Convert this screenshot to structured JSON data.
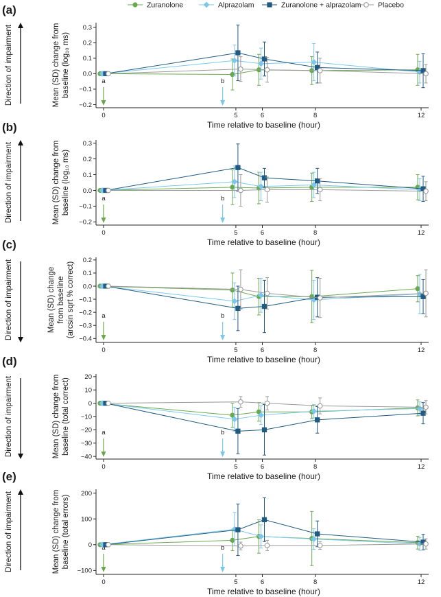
{
  "colors": {
    "zuranolone": "#6aa84f",
    "alprazolam": "#7cc8ec",
    "combo": "#1f5a80",
    "placebo": "#9a9a9a",
    "axis": "#222222"
  },
  "legend": [
    {
      "key": "zuranolone",
      "label": "Zuranolone",
      "marker": "circle"
    },
    {
      "key": "alprazolam",
      "label": "Alprazolam",
      "marker": "diamond"
    },
    {
      "key": "combo",
      "label": "Zuranolone + alprazolam",
      "marker": "square"
    },
    {
      "key": "placebo",
      "label": "Placebo",
      "marker": "open-circle"
    }
  ],
  "direction_label": "Direction of impairment",
  "markers": {
    "a": "a",
    "b": "b",
    "a_x": 0,
    "b_x": 4.5
  },
  "chart_data": [
    {
      "panel": "(a)",
      "type": "line",
      "ylabel_lines": [
        "Mean (SD) change from",
        "baseline (log₁₀ ms)"
      ],
      "xlabel": "Time relative to baseline (hour)",
      "x": [
        0,
        5,
        6,
        8,
        12
      ],
      "xticks": [
        0,
        5,
        6,
        8,
        12
      ],
      "ylim": [
        -0.22,
        0.33
      ],
      "yticks": [
        -0.2,
        -0.1,
        0.0,
        0.1,
        0.2,
        0.3
      ],
      "ytick_labels": [
        "−0.2",
        "−0.1",
        "0.0",
        "0.1",
        "0.2",
        "0.3"
      ],
      "direction": "up",
      "series": [
        {
          "key": "zuranolone",
          "name": "Zuranolone",
          "values": [
            0.0,
            -0.005,
            0.025,
            0.02,
            0.025
          ],
          "sd": [
            0.003,
            0.1,
            0.1,
            0.09,
            0.1
          ]
        },
        {
          "key": "alprazolam",
          "name": "Alprazolam",
          "values": [
            0.0,
            0.085,
            0.065,
            0.075,
            0.01
          ],
          "sd": [
            0.003,
            0.1,
            0.1,
            0.12,
            0.07
          ]
        },
        {
          "key": "combo",
          "name": "Zuranolone + alprazolam",
          "values": [
            0.0,
            0.135,
            0.095,
            0.04,
            0.02
          ],
          "sd": [
            0.003,
            0.18,
            0.11,
            0.1,
            0.11
          ]
        },
        {
          "key": "placebo",
          "name": "Placebo",
          "values": [
            0.0,
            0.03,
            0.025,
            0.02,
            0.0
          ],
          "sd": [
            0.003,
            0.08,
            0.08,
            0.08,
            0.06
          ]
        }
      ]
    },
    {
      "panel": "(b)",
      "type": "line",
      "ylabel_lines": [
        "Mean (SD) change from",
        "baseline (log₁₀ ms)"
      ],
      "xlabel": "Time relative to baseline (hour)",
      "x": [
        0,
        5,
        6,
        8,
        12
      ],
      "xticks": [
        0,
        5,
        6,
        8,
        12
      ],
      "ylim": [
        -0.22,
        0.32
      ],
      "yticks": [
        -0.2,
        -0.1,
        0.0,
        0.1,
        0.2,
        0.3
      ],
      "ytick_labels": [
        "−0.2",
        "−0.1",
        "0.0",
        "0.1",
        "0.2",
        "0.3"
      ],
      "direction": "up",
      "series": [
        {
          "key": "zuranolone",
          "name": "Zuranolone",
          "values": [
            0.0,
            0.02,
            0.015,
            0.02,
            0.02
          ],
          "sd": [
            0.003,
            0.11,
            0.1,
            0.09,
            0.08
          ]
        },
        {
          "key": "alprazolam",
          "name": "Alprazolam",
          "values": [
            0.0,
            0.055,
            0.025,
            0.035,
            0.005
          ],
          "sd": [
            0.003,
            0.1,
            0.09,
            0.08,
            0.07
          ]
        },
        {
          "key": "combo",
          "name": "Zuranolone + alprazolam",
          "values": [
            0.0,
            0.145,
            0.08,
            0.06,
            0.01
          ],
          "sd": [
            0.003,
            0.15,
            0.06,
            0.08,
            0.08
          ]
        },
        {
          "key": "placebo",
          "name": "Placebo",
          "values": [
            0.0,
            0.0,
            0.005,
            0.005,
            -0.005
          ],
          "sd": [
            0.003,
            0.1,
            0.08,
            0.07,
            0.06
          ]
        }
      ]
    },
    {
      "panel": "(c)",
      "type": "line",
      "ylabel_lines": [
        "Mean (SD) change",
        "from baseline",
        "(arcsin sqrt % correct)"
      ],
      "xlabel": "Time relative to baseline (hour)",
      "x": [
        0,
        5,
        6,
        8,
        12
      ],
      "xticks": [
        0,
        5,
        6,
        8,
        12
      ],
      "ylim": [
        -0.43,
        0.22
      ],
      "yticks": [
        -0.4,
        -0.3,
        -0.2,
        -0.1,
        0.0,
        0.1,
        0.2
      ],
      "ytick_labels": [
        "−0.4",
        "−0.3",
        "−0.2",
        "−0.1",
        "0.0",
        "0.1",
        "0.2"
      ],
      "direction": "down",
      "series": [
        {
          "key": "zuranolone",
          "name": "Zuranolone",
          "values": [
            0.0,
            -0.03,
            -0.08,
            -0.08,
            -0.02
          ],
          "sd": [
            0.003,
            0.13,
            0.14,
            0.2,
            0.1
          ]
        },
        {
          "key": "alprazolam",
          "name": "Alprazolam",
          "values": [
            0.0,
            -0.115,
            -0.07,
            -0.105,
            -0.06
          ],
          "sd": [
            0.003,
            0.14,
            0.13,
            0.15,
            0.15
          ]
        },
        {
          "key": "combo",
          "name": "Zuranolone + alprazolam",
          "values": [
            0.0,
            -0.17,
            -0.155,
            -0.085,
            -0.08
          ],
          "sd": [
            0.003,
            0.17,
            0.2,
            0.15,
            0.13
          ]
        },
        {
          "key": "placebo",
          "name": "Placebo",
          "values": [
            0.0,
            -0.025,
            -0.055,
            -0.09,
            -0.055
          ],
          "sd": [
            0.003,
            0.15,
            0.12,
            0.15,
            0.18
          ]
        }
      ]
    },
    {
      "panel": "(d)",
      "type": "line",
      "ylabel_lines": [
        "Mean (SD) change from",
        "baseline (total correct)"
      ],
      "xlabel": "Time relative to baseline (hour)",
      "x": [
        0,
        5,
        6,
        8,
        12
      ],
      "xticks": [
        0,
        5,
        6,
        8,
        12
      ],
      "ylim": [
        -42,
        22
      ],
      "yticks": [
        -40,
        -30,
        -20,
        -10,
        0,
        10,
        20
      ],
      "ytick_labels": [
        "−40",
        "−30",
        "−20",
        "−10",
        "0",
        "10",
        "20"
      ],
      "direction": "down",
      "series": [
        {
          "key": "zuranolone",
          "name": "Zuranolone",
          "values": [
            0,
            -9,
            -6.5,
            -6.5,
            -3.5
          ],
          "sd": [
            0.3,
            9,
            7,
            5,
            6
          ]
        },
        {
          "key": "alprazolam",
          "name": "Alprazolam",
          "values": [
            0,
            -12,
            -9,
            -6,
            -4
          ],
          "sd": [
            0.3,
            9,
            7,
            5,
            5
          ]
        },
        {
          "key": "combo",
          "name": "Zuranolone + alprazolam",
          "values": [
            0,
            -21,
            -20,
            -12.5,
            -7.5
          ],
          "sd": [
            0.3,
            17,
            19,
            10,
            8
          ]
        },
        {
          "key": "placebo",
          "name": "Placebo",
          "values": [
            0,
            1,
            0,
            -2,
            -3
          ],
          "sd": [
            0.3,
            4,
            5,
            6,
            5
          ]
        }
      ]
    },
    {
      "panel": "(e)",
      "type": "line",
      "ylabel_lines": [
        "Mean (SD) change from",
        "baseline (total errors)"
      ],
      "xlabel": "Time relative to baseline (hour)",
      "x": [
        0,
        5,
        6,
        8,
        12
      ],
      "xticks": [
        0,
        5,
        6,
        8,
        12
      ],
      "ylim": [
        -115,
        215
      ],
      "yticks": [
        -100,
        0,
        100,
        200
      ],
      "ytick_labels": [
        "−100",
        "0",
        "100",
        "200"
      ],
      "direction": "up",
      "series": [
        {
          "key": "zuranolone",
          "name": "Zuranolone",
          "values": [
            0,
            17,
            32,
            24,
            8
          ],
          "sd": [
            1,
            40,
            65,
            105,
            25
          ]
        },
        {
          "key": "alprazolam",
          "name": "Alprazolam",
          "values": [
            0,
            60,
            32,
            22,
            3
          ],
          "sd": [
            1,
            65,
            45,
            40,
            25
          ]
        },
        {
          "key": "combo",
          "name": "Zuranolone + alprazolam",
          "values": [
            0,
            58,
            97,
            42,
            10
          ],
          "sd": [
            1,
            100,
            85,
            50,
            30
          ]
        },
        {
          "key": "placebo",
          "name": "Placebo",
          "values": [
            0,
            -5,
            -3,
            -3,
            3
          ],
          "sd": [
            1,
            15,
            20,
            15,
            20
          ]
        }
      ]
    }
  ]
}
